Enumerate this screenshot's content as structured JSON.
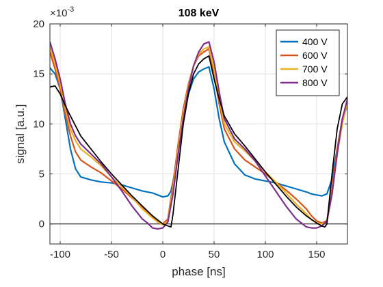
{
  "chart_data": {
    "type": "line",
    "title": "108 keV",
    "xlabel": "phase [ns]",
    "ylabel": "signal [a.u.]",
    "xlim": [
      -110,
      180
    ],
    "ylim": [
      -0.002,
      0.02
    ],
    "x_ticks": [
      -100,
      -50,
      0,
      50,
      100,
      150
    ],
    "x_tick_labels": [
      "-100",
      "-50",
      "0",
      "50",
      "100",
      "150"
    ],
    "y_ticks": [
      0,
      0.005,
      0.01,
      0.015,
      0.02
    ],
    "y_tick_labels": [
      "0",
      "5",
      "10",
      "15",
      "20"
    ],
    "y_exponent_label": "×10",
    "y_exponent_power": "-3",
    "grid": true,
    "legend_position": "top-right",
    "zero_line": true,
    "series": [
      {
        "name": "400 V",
        "color": "#0072BD",
        "x": [
          -110,
          -105,
          -100,
          -95,
          -90,
          -85,
          -80,
          -70,
          -60,
          -50,
          -40,
          -30,
          -20,
          -10,
          -5,
          0,
          5,
          8,
          10,
          15,
          20,
          25,
          30,
          35,
          40,
          45,
          50,
          55,
          60,
          70,
          80,
          90,
          100,
          110,
          120,
          130,
          140,
          145,
          150,
          155,
          160,
          165,
          170,
          175,
          180
        ],
        "y": [
          0.0156,
          0.015,
          0.0135,
          0.0105,
          0.0075,
          0.0055,
          0.0047,
          0.0044,
          0.0042,
          0.0041,
          0.0039,
          0.0036,
          0.0033,
          0.0031,
          0.0029,
          0.0027,
          0.0028,
          0.0033,
          0.0042,
          0.0075,
          0.0105,
          0.013,
          0.0145,
          0.0152,
          0.0155,
          0.0157,
          0.0135,
          0.0105,
          0.0082,
          0.006,
          0.0049,
          0.0045,
          0.0043,
          0.0041,
          0.0038,
          0.0035,
          0.0032,
          0.003,
          0.0029,
          0.0028,
          0.003,
          0.0045,
          0.0075,
          0.0105,
          0.0118
        ]
      },
      {
        "name": "600 V",
        "color": "#D95319",
        "x": [
          -110,
          -105,
          -100,
          -95,
          -90,
          -85,
          -80,
          -70,
          -60,
          -50,
          -40,
          -30,
          -20,
          -10,
          -5,
          0,
          5,
          10,
          15,
          20,
          25,
          30,
          35,
          40,
          45,
          50,
          55,
          60,
          70,
          80,
          90,
          100,
          110,
          120,
          130,
          140,
          145,
          150,
          155,
          160,
          165,
          170,
          175,
          180
        ],
        "y": [
          0.0172,
          0.0155,
          0.0135,
          0.011,
          0.0088,
          0.0072,
          0.0064,
          0.0057,
          0.0051,
          0.0043,
          0.0035,
          0.0026,
          0.0017,
          0.0008,
          0.0003,
          0.0,
          0.0005,
          0.004,
          0.008,
          0.0115,
          0.014,
          0.0158,
          0.0168,
          0.0172,
          0.0175,
          0.015,
          0.012,
          0.0095,
          0.0075,
          0.0064,
          0.0057,
          0.005,
          0.0042,
          0.0034,
          0.0025,
          0.0015,
          0.0008,
          0.0003,
          0.0001,
          0.0003,
          0.0035,
          0.0075,
          0.0105,
          0.012
        ]
      },
      {
        "name": "700 V",
        "color": "#EDB120",
        "x": [
          -110,
          -105,
          -100,
          -95,
          -90,
          -85,
          -80,
          -70,
          -60,
          -50,
          -40,
          -30,
          -20,
          -10,
          -5,
          0,
          5,
          10,
          15,
          20,
          25,
          30,
          35,
          40,
          45,
          50,
          55,
          60,
          70,
          80,
          90,
          100,
          110,
          120,
          130,
          140,
          145,
          150,
          155,
          160,
          165,
          170,
          175,
          180
        ],
        "y": [
          0.0177,
          0.016,
          0.014,
          0.0115,
          0.0095,
          0.0083,
          0.0075,
          0.0067,
          0.0058,
          0.0047,
          0.0037,
          0.0027,
          0.0015,
          0.0006,
          0.0002,
          -0.0001,
          0.0003,
          0.0035,
          0.0075,
          0.011,
          0.0138,
          0.0158,
          0.017,
          0.0175,
          0.0177,
          0.0155,
          0.0125,
          0.01,
          0.0082,
          0.0073,
          0.0063,
          0.0052,
          0.0042,
          0.0031,
          0.002,
          0.001,
          0.0004,
          0.0001,
          0.0,
          0.0002,
          0.003,
          0.007,
          0.01,
          0.0122
        ]
      },
      {
        "name": "800 V",
        "color": "#7E2F8E",
        "x": [
          -110,
          -105,
          -100,
          -95,
          -90,
          -85,
          -80,
          -70,
          -60,
          -50,
          -40,
          -30,
          -20,
          -15,
          -10,
          -5,
          0,
          5,
          10,
          15,
          20,
          25,
          30,
          35,
          40,
          45,
          50,
          55,
          60,
          70,
          80,
          90,
          100,
          110,
          120,
          130,
          135,
          140,
          145,
          150,
          155,
          160,
          165,
          170,
          175,
          180
        ],
        "y": [
          0.0182,
          0.0165,
          0.0145,
          0.012,
          0.01,
          0.0088,
          0.008,
          0.007,
          0.006,
          0.0047,
          0.0033,
          0.0018,
          0.0005,
          0.0001,
          -0.0004,
          -0.0005,
          -0.0004,
          0.0002,
          0.003,
          0.007,
          0.0105,
          0.0135,
          0.0158,
          0.0172,
          0.018,
          0.0182,
          0.0162,
          0.0132,
          0.0105,
          0.0085,
          0.0075,
          0.0063,
          0.0048,
          0.0033,
          0.0018,
          0.0005,
          0.0001,
          -0.0003,
          -0.0004,
          -0.0004,
          -0.0002,
          0.0003,
          0.003,
          0.007,
          0.0105,
          0.0125
        ]
      },
      {
        "color": "#000000",
        "x": [
          -110,
          -105,
          -100,
          -95,
          -90,
          -85,
          -80,
          -70,
          -60,
          -50,
          -40,
          -30,
          -20,
          -10,
          0,
          5,
          8,
          10,
          15,
          20,
          25,
          30,
          35,
          40,
          45,
          50,
          55,
          60,
          70,
          80,
          90,
          100,
          110,
          120,
          130,
          140,
          150,
          155,
          158,
          160,
          165,
          170,
          175,
          180
        ],
        "y": [
          0.0137,
          0.0138,
          0.013,
          0.0118,
          0.0108,
          0.0098,
          0.0088,
          0.0075,
          0.0062,
          0.005,
          0.0039,
          0.0028,
          0.0018,
          0.0008,
          0.0,
          -0.0002,
          -0.0003,
          0.001,
          0.0055,
          0.01,
          0.013,
          0.015,
          0.016,
          0.0165,
          0.0168,
          0.0145,
          0.0125,
          0.0108,
          0.009,
          0.0078,
          0.0065,
          0.0052,
          0.004,
          0.0028,
          0.0017,
          0.0008,
          0.0001,
          -0.0002,
          -0.0003,
          0.0,
          0.005,
          0.0095,
          0.012,
          0.0127
        ]
      }
    ]
  }
}
